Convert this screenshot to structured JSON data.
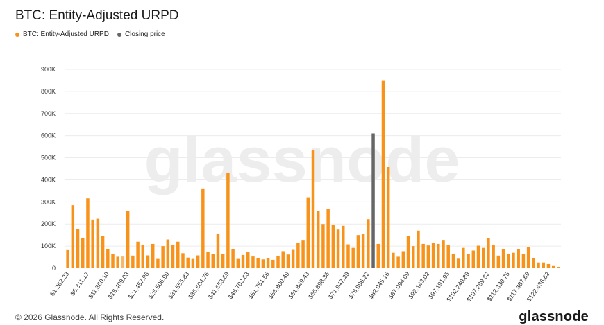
{
  "header": {
    "title": "BTC: Entity-Adjusted URPD"
  },
  "legend": [
    {
      "label": "BTC: Entity-Adjusted URPD",
      "color": "#f7931a"
    },
    {
      "label": "Closing price",
      "color": "#666666"
    }
  ],
  "watermark": "glassnode",
  "footer": {
    "copyright": "© 2026 Glassnode. All Rights Reserved.",
    "logo": "glassnode"
  },
  "colors": {
    "bar": "#f7931a",
    "bar_highlight": "#f8b86a",
    "closing": "#666666",
    "grid": "#ececec",
    "axis_text": "#333333"
  },
  "chart_data": {
    "type": "bar",
    "y_ticks": [
      "0",
      "100K",
      "200K",
      "300K",
      "400K",
      "500K",
      "600K",
      "700K",
      "800K",
      "900K"
    ],
    "ylim": [
      0,
      900000
    ],
    "x_tick_labels": [
      "$1,262.23",
      "$6,311.17",
      "$11,360.10",
      "$16,409.03",
      "$21,457.96",
      "$26,506.90",
      "$31,555.83",
      "$36,604.76",
      "$41,653.69",
      "$46,702.63",
      "$51,751.56",
      "$56,800.49",
      "$61,849.43",
      "$66,898.36",
      "$71,947.29",
      "$76,996.22",
      "$82,045.16",
      "$87,094.09",
      "$92,143.02",
      "$97,191.95",
      "$102,240.89",
      "$107,289.82",
      "$112,338.75",
      "$117,387.69",
      "$122,436.62"
    ],
    "values": [
      82000,
      285000,
      178000,
      135000,
      316000,
      220000,
      224000,
      145000,
      85000,
      65000,
      52000,
      53000,
      258000,
      57000,
      120000,
      105000,
      58000,
      110000,
      42000,
      100000,
      130000,
      105000,
      120000,
      68000,
      48000,
      42000,
      58000,
      358000,
      73000,
      65000,
      157000,
      66000,
      430000,
      85000,
      42000,
      60000,
      72000,
      53000,
      45000,
      40000,
      46000,
      38000,
      55000,
      77000,
      62000,
      83000,
      115000,
      125000,
      318000,
      533000,
      258000,
      200000,
      268000,
      196000,
      175000,
      192000,
      108000,
      92000,
      150000,
      155000,
      222000,
      610000,
      110000,
      848000,
      458000,
      70000,
      52000,
      77000,
      147000,
      100000,
      170000,
      110000,
      103000,
      115000,
      110000,
      125000,
      105000,
      66000,
      43000,
      92000,
      63000,
      80000,
      102000,
      92000,
      138000,
      105000,
      57000,
      85000,
      66000,
      70000,
      86000,
      63000,
      97000,
      46000,
      26000,
      26000,
      19000,
      10000,
      3000
    ],
    "closing_index": 61,
    "highlight_index": 11,
    "series": [
      {
        "name": "BTC: Entity-Adjusted URPD"
      },
      {
        "name": "Closing price"
      }
    ]
  }
}
